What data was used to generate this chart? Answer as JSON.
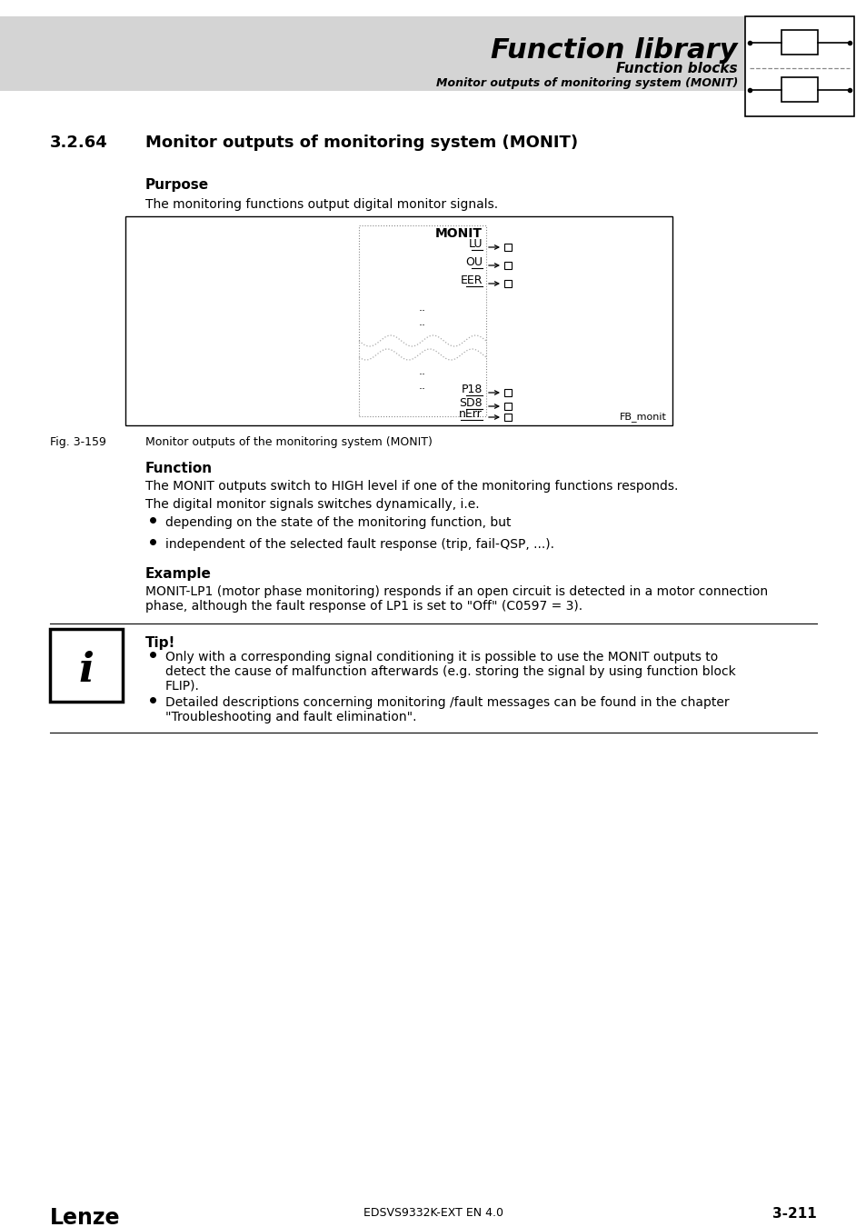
{
  "page_bg": "#ffffff",
  "header_bg": "#d4d4d4",
  "header_title": "Function library",
  "header_sub1": "Function blocks",
  "header_sub2": "Monitor outputs of monitoring system (MONIT)",
  "section_number": "3.2.64",
  "section_title": "Monitor outputs of monitoring system (MONIT)",
  "purpose_label": "Purpose",
  "purpose_text": "The monitoring functions output digital monitor signals.",
  "fig_label": "Fig. 3-159",
  "fig_caption": "Monitor outputs of the monitoring system (MONIT)",
  "fb_label": "FB_monit",
  "monit_title": "MONIT",
  "monit_outputs_top": [
    "LU",
    "OU",
    "EER"
  ],
  "monit_outputs_bottom": [
    "P18",
    "SD8",
    "nErr"
  ],
  "function_label": "Function",
  "function_text1": "The MONIT outputs switch to HIGH level if one of the monitoring functions responds.",
  "function_text2": "The digital monitor signals switches dynamically, i.e.",
  "bullet1": "depending on the state of the monitoring function, but",
  "bullet2": "independent of the selected fault response (trip, fail-QSP, ...).",
  "example_label": "Example",
  "example_text1": "MONIT-LP1 (motor phase monitoring) responds if an open circuit is detected in a motor connection",
  "example_text2": "phase, although the fault response of LP1 is set to \"Off\" (C0597 = 3).",
  "tip_label": "Tip!",
  "tip_bullet1a": "Only with a corresponding signal conditioning it is possible to use the MONIT outputs to",
  "tip_bullet1b": "detect the cause of malfunction afterwards (e.g. storing the signal by using function block",
  "tip_bullet1c": "FLIP).",
  "tip_bullet2a": "Detailed descriptions concerning monitoring /fault messages can be found in the chapter",
  "tip_bullet2b": "\"Troubleshooting and fault elimination\".",
  "footer_left": "Lenze",
  "footer_center": "EDSVS9332K-EXT EN 4.0",
  "footer_right": "3-211"
}
